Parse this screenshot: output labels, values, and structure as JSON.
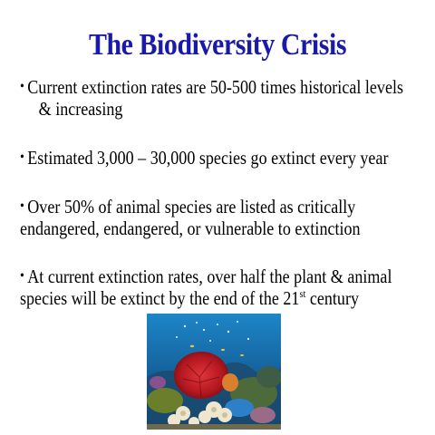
{
  "slide": {
    "title": "The Biodiversity Crisis",
    "bullets": [
      {
        "lines": [
          "Current extinction rates are 50-500 times historical levels",
          "& increasing"
        ]
      },
      {
        "lines": [
          "Estimated 3,000 – 30,000 species go extinct every year"
        ]
      },
      {
        "lines": [
          "Over 50% of animal species are listed as critically",
          "endangered, endangered, or vulnerable to extinction"
        ]
      },
      {
        "line1": "At current extinction rates, over half the plant & animal",
        "line2_prefix": "species will be extinct by the end of the 21",
        "line2_sup": "st",
        "line2_suffix": " century"
      }
    ],
    "bullet_glyph": "•"
  },
  "colors": {
    "title": "#1a1aa8",
    "body": "#000000",
    "ocean": "#1f6fb0",
    "coral": "#c8202a"
  }
}
